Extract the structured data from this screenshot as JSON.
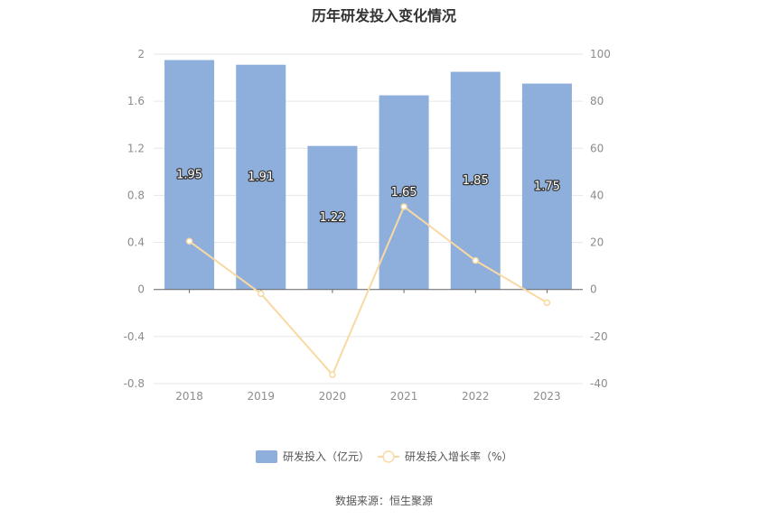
{
  "page": {
    "title": "历年研发投入变化情况",
    "source": "数据来源：恒生聚源"
  },
  "colors": {
    "bar": "#8eaedb",
    "line": "#f9d9a3",
    "grid": "#e6e6e6",
    "axis_text": "#8c8c8c",
    "label_text": "#ffffff"
  },
  "chart_data": {
    "type": "bar",
    "title": "历年研发投入变化情况",
    "categories": [
      "2018",
      "2019",
      "2020",
      "2021",
      "2022",
      "2023"
    ],
    "series": [
      {
        "name": "研发投入（亿元）",
        "type": "bar",
        "axis": "left",
        "values": [
          1.95,
          1.91,
          1.22,
          1.65,
          1.85,
          1.75
        ],
        "labels": [
          "1.95",
          "1.91",
          "1.22",
          "1.65",
          "1.85",
          "1.75"
        ]
      },
      {
        "name": "研发投入增长率（%）",
        "type": "line",
        "axis": "right",
        "values": [
          20.5,
          -1.8,
          -36.2,
          35.2,
          12.3,
          -5.6
        ]
      }
    ],
    "y_left": {
      "lim": [
        -0.8,
        2
      ],
      "ticks": [
        "-0.8",
        "-0.4",
        "0",
        "0.4",
        "0.8",
        "1.2",
        "1.6",
        "2"
      ]
    },
    "y_right": {
      "lim": [
        -40,
        100
      ],
      "ticks": [
        "-40",
        "-20",
        "0",
        "20",
        "40",
        "60",
        "80",
        "100"
      ]
    },
    "grid": true,
    "legend": "bottom-center"
  }
}
